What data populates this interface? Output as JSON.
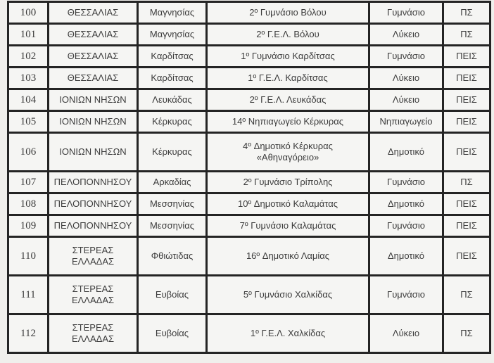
{
  "table": {
    "description": "Greek schools list table segment, rows 100-112",
    "columns": [
      "number",
      "region",
      "prefecture",
      "school",
      "type",
      "program"
    ],
    "rows": [
      {
        "id": "100",
        "region": "ΘΕΣΣΑΛΙΑΣ",
        "prefecture": "Μαγνησίας",
        "school": "2º Γυμνάσιο Βόλου",
        "type": "Γυμνάσιο",
        "program": "ΠΣ"
      },
      {
        "id": "101",
        "region": "ΘΕΣΣΑΛΙΑΣ",
        "prefecture": "Μαγνησίας",
        "school": "2º Γ.Ε.Λ. Βόλου",
        "type": "Λύκειο",
        "program": "ΠΣ"
      },
      {
        "id": "102",
        "region": "ΘΕΣΣΑΛΙΑΣ",
        "prefecture": "Καρδίτσας",
        "school": "1º Γυμνάσιο Καρδίτσας",
        "type": "Γυμνάσιο",
        "program": "ΠΕΙΣ"
      },
      {
        "id": "103",
        "region": "ΘΕΣΣΑΛΙΑΣ",
        "prefecture": "Καρδίτσας",
        "school": "1º Γ.Ε.Λ. Καρδίτσας",
        "type": "Λύκειο",
        "program": "ΠΕΙΣ"
      },
      {
        "id": "104",
        "region": "ΙΟΝΙΩΝ ΝΗΣΩΝ",
        "prefecture": "Λευκάδας",
        "school": "2º Γ.Ε.Λ. Λευκάδας",
        "type": "Λύκειο",
        "program": "ΠΕΙΣ"
      },
      {
        "id": "105",
        "region": "ΙΟΝΙΩΝ ΝΗΣΩΝ",
        "prefecture": "Κέρκυρας",
        "school": "14º Νηπιαγωγείο Κέρκυρας",
        "type": "Νηπιαγωγείο",
        "program": "ΠΕΙΣ"
      },
      {
        "id": "106",
        "region": "ΙΟΝΙΩΝ ΝΗΣΩΝ",
        "prefecture": "Κέρκυρας",
        "school": "4º Δημοτικό Κέρκυρας «Αθηναγόρειο»",
        "type": "Δημοτικό",
        "program": "ΠΕΙΣ"
      },
      {
        "id": "107",
        "region": "ΠΕΛΟΠΟΝΝΗΣΟΥ",
        "prefecture": "Αρκαδίας",
        "school": "2º Γυμνάσιο Τρίπολης",
        "type": "Γυμνάσιο",
        "program": "ΠΣ"
      },
      {
        "id": "108",
        "region": "ΠΕΛΟΠΟΝΝΗΣΟΥ",
        "prefecture": "Μεσσηνίας",
        "school": "10º Δημοτικό Καλαμάτας",
        "type": "Δημοτικό",
        "program": "ΠΕΙΣ"
      },
      {
        "id": "109",
        "region": "ΠΕΛΟΠΟΝΝΗΣΟΥ",
        "prefecture": "Μεσσηνίας",
        "school": "7º Γυμνάσιο Καλαμάτας",
        "type": "Γυμνάσιο",
        "program": "ΠΕΙΣ"
      },
      {
        "id": "110",
        "region": "ΣΤΕΡΕΑΣ ΕΛΛΑΔΑΣ",
        "prefecture": "Φθιώτιδας",
        "school": "16º Δημοτικό Λαμίας",
        "type": "Δημοτικό",
        "program": "ΠΕΙΣ"
      },
      {
        "id": "111",
        "region": "ΣΤΕΡΕΑΣ ΕΛΛΑΔΑΣ",
        "prefecture": "Ευβοίας",
        "school": "5º Γυμνάσιο Χαλκίδας",
        "type": "Γυμνάσιο",
        "program": "ΠΣ"
      },
      {
        "id": "112",
        "region": "ΣΤΕΡΕΑΣ ΕΛΛΑΔΑΣ",
        "prefecture": "Ευβοίας",
        "school": "1º Γ.Ε.Λ. Χαλκίδας",
        "type": "Λύκειο",
        "program": "ΠΣ"
      }
    ]
  },
  "colors": {
    "page_background": "#f0efec",
    "cell_background": "#f5f5f3",
    "border": "#242424",
    "text": "#3c3c3c"
  }
}
